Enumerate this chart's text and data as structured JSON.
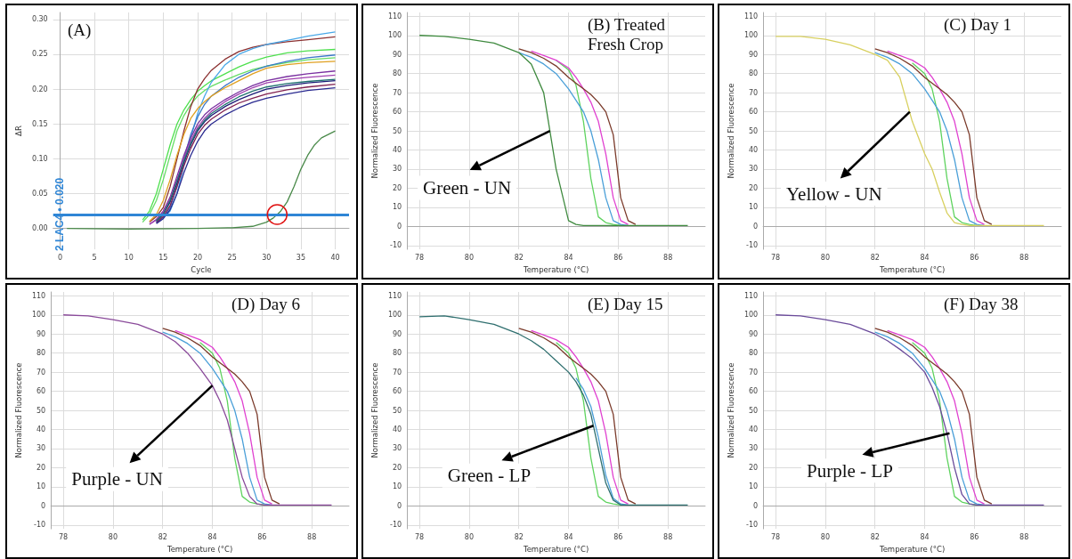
{
  "chart_data": [
    {
      "type": "line",
      "title": "(A)",
      "xlabel": "Cycle",
      "ylabel": "ΔR",
      "x": [
        12,
        13,
        14,
        15,
        16,
        17,
        18,
        19,
        20,
        21,
        22,
        24,
        26,
        28,
        30,
        33,
        36,
        40
      ],
      "xlim": [
        -1,
        42
      ],
      "ylim": [
        -0.03,
        0.31
      ],
      "xticks": [
        0,
        5,
        10,
        15,
        20,
        25,
        30,
        35,
        40
      ],
      "yticks": [
        {
          "value": 0,
          "label": "0.00"
        },
        {
          "value": 0.05,
          "label": "0.05"
        },
        {
          "value": 0.1,
          "label": "0.10"
        },
        {
          "value": 0.15,
          "label": "0.15"
        },
        {
          "value": 0.2,
          "label": "0.20"
        },
        {
          "value": 0.25,
          "label": "0.25"
        },
        {
          "value": 0.3,
          "label": "0.30"
        }
      ],
      "grid": true,
      "ref_lines": [
        {
          "axis": "y",
          "value": 0.02,
          "label": "2 LAC4 • 0.020",
          "color": "#2f86d6"
        }
      ],
      "series": [
        {
          "color": "#4ee04e",
          "values": [
            0.012,
            0.025,
            0.05,
            0.085,
            0.12,
            0.15,
            0.17,
            0.185,
            0.197,
            0.205,
            0.212,
            0.222,
            0.232,
            0.24,
            0.246,
            0.252,
            0.255,
            0.257
          ]
        },
        {
          "color": "#66dd66",
          "values": [
            0.009,
            0.02,
            0.04,
            0.07,
            0.105,
            0.14,
            0.162,
            0.178,
            0.19,
            0.198,
            0.204,
            0.213,
            0.221,
            0.228,
            0.233,
            0.238,
            0.242,
            0.245
          ]
        },
        {
          "color": "#8b3030",
          "values": [
            null,
            0.009,
            0.017,
            0.03,
            0.06,
            0.1,
            0.14,
            0.175,
            0.2,
            0.215,
            0.227,
            0.243,
            0.254,
            0.26,
            0.264,
            0.268,
            0.271,
            0.275
          ]
        },
        {
          "color": "#4aa8e8",
          "values": [
            null,
            null,
            0.009,
            0.015,
            0.025,
            0.05,
            0.09,
            0.13,
            0.165,
            0.19,
            0.21,
            0.235,
            0.25,
            0.258,
            0.264,
            0.27,
            0.276,
            0.282
          ]
        },
        {
          "color": "#3a78c8",
          "values": [
            null,
            null,
            0.008,
            0.016,
            0.03,
            0.06,
            0.1,
            0.135,
            0.16,
            0.178,
            0.19,
            0.205,
            0.217,
            0.226,
            0.233,
            0.24,
            0.245,
            0.249
          ]
        },
        {
          "color": "#e0a020",
          "values": [
            null,
            0.01,
            0.02,
            0.04,
            0.07,
            0.105,
            0.135,
            0.158,
            0.172,
            0.182,
            0.19,
            0.202,
            0.212,
            0.222,
            0.23,
            0.235,
            0.238,
            0.24
          ]
        },
        {
          "color": "#7a30a0",
          "values": [
            null,
            0.006,
            0.013,
            0.025,
            0.045,
            0.075,
            0.105,
            0.13,
            0.15,
            0.163,
            0.172,
            0.185,
            0.196,
            0.205,
            0.212,
            0.218,
            0.222,
            0.226
          ]
        },
        {
          "color": "#1c1c78",
          "values": [
            null,
            null,
            0.01,
            0.02,
            0.038,
            0.065,
            0.095,
            0.12,
            0.14,
            0.153,
            0.162,
            0.175,
            0.185,
            0.193,
            0.2,
            0.205,
            0.209,
            0.212
          ]
        },
        {
          "color": "#802050",
          "values": [
            null,
            null,
            0.008,
            0.017,
            0.033,
            0.06,
            0.09,
            0.115,
            0.135,
            0.148,
            0.157,
            0.17,
            0.18,
            0.187,
            0.193,
            0.199,
            0.203,
            0.207
          ]
        },
        {
          "color": "#2a2a90",
          "values": [
            null,
            null,
            0.007,
            0.014,
            0.027,
            0.05,
            0.08,
            0.105,
            0.125,
            0.14,
            0.15,
            0.163,
            0.173,
            0.181,
            0.187,
            0.193,
            0.198,
            0.202
          ]
        },
        {
          "color": "#a040b0",
          "values": [
            null,
            0.006,
            0.012,
            0.023,
            0.042,
            0.07,
            0.1,
            0.125,
            0.145,
            0.158,
            0.168,
            0.182,
            0.193,
            0.202,
            0.209,
            0.214,
            0.217,
            0.22
          ]
        },
        {
          "color": "#207070",
          "values": [
            null,
            null,
            0.011,
            0.021,
            0.04,
            0.068,
            0.097,
            0.122,
            0.142,
            0.155,
            0.165,
            0.178,
            0.189,
            0.197,
            0.203,
            0.208,
            0.211,
            0.214
          ]
        },
        {
          "color": "#4a8a4a",
          "x": [
            1,
            10,
            20,
            25,
            28,
            30,
            31,
            32,
            33,
            34,
            35,
            36,
            37,
            38,
            40
          ],
          "values": [
            0,
            -0.001,
            0,
            0.001,
            0.003,
            0.009,
            0.015,
            0.024,
            0.038,
            0.06,
            0.085,
            0.105,
            0.12,
            0.13,
            0.14
          ]
        }
      ]
    },
    {
      "type": "line",
      "title": "(B) Treated Fresh Crop",
      "xlabel": "Temperature (°C)",
      "ylabel": "Normalized Fluorescence",
      "x": [
        78,
        79,
        80,
        81,
        82,
        82.5,
        83,
        83.5,
        84,
        84.3,
        84.6,
        84.9,
        85.2,
        85.5,
        85.8,
        86.1,
        86.4,
        86.7,
        87,
        88,
        88.8
      ],
      "xlim": [
        77.5,
        89.5
      ],
      "ylim": [
        -12,
        112
      ],
      "xticks": [
        78,
        80,
        82,
        84,
        86,
        88
      ],
      "yticks": [
        -10,
        0,
        10,
        20,
        30,
        40,
        50,
        60,
        70,
        80,
        90,
        100,
        110
      ],
      "grid": true,
      "annotations": [
        {
          "text": "Green - UN",
          "x": 83.25,
          "y": 50
        }
      ],
      "series": [
        {
          "color": "#5fd35f",
          "values": [
            null,
            null,
            null,
            null,
            null,
            null,
            null,
            87,
            82,
            74,
            55,
            25,
            5,
            2,
            1,
            0.5,
            null,
            null,
            null,
            null,
            null
          ]
        },
        {
          "color": "#4a9fd8",
          "values": [
            null,
            null,
            null,
            null,
            91,
            88.5,
            85,
            80,
            72,
            66,
            60,
            50,
            35,
            15,
            3,
            1,
            0.5,
            null,
            null,
            null,
            null
          ]
        },
        {
          "color": "#e040d0",
          "values": [
            null,
            null,
            null,
            null,
            null,
            91.8,
            89.5,
            87,
            83,
            78,
            72,
            65,
            55,
            38,
            15,
            3,
            1,
            null,
            null,
            null,
            null
          ]
        },
        {
          "color": "#7a3a2a",
          "values": [
            null,
            null,
            null,
            null,
            93,
            91,
            88,
            84,
            78,
            75,
            72,
            69,
            65,
            60,
            48,
            15,
            3,
            1,
            null,
            null,
            null
          ]
        },
        {
          "color": "#3f8a3f",
          "values": [
            100,
            99.5,
            98,
            96,
            91,
            85,
            70,
            30,
            3,
            1,
            0.5,
            0.5,
            0.5,
            0.5,
            0.5,
            0.5,
            0.5,
            0.5,
            0.5,
            0.5,
            0.5
          ]
        }
      ]
    },
    {
      "type": "line",
      "title": "(C) Day 1",
      "xlabel": "Temperature (°C)",
      "ylabel": "Normalized Fluorescence",
      "x": [
        78,
        79,
        80,
        81,
        82,
        82.5,
        83,
        83.5,
        84,
        84.3,
        84.6,
        84.9,
        85.2,
        85.5,
        85.8,
        86.1,
        86.4,
        86.7,
        87,
        88,
        88.8
      ],
      "xlim": [
        77.5,
        89.5
      ],
      "ylim": [
        -12,
        112
      ],
      "xticks": [
        78,
        80,
        82,
        84,
        86,
        88
      ],
      "yticks": [
        -10,
        0,
        10,
        20,
        30,
        40,
        50,
        60,
        70,
        80,
        90,
        100,
        110
      ],
      "grid": true,
      "annotations": [
        {
          "text": "Yellow - UN",
          "x": 83.4,
          "y": 60
        }
      ],
      "series": [
        {
          "color": "#5fd35f",
          "values": [
            null,
            null,
            null,
            null,
            null,
            null,
            null,
            85.5,
            80,
            72,
            55,
            25,
            5,
            2,
            1,
            0.5,
            null,
            null,
            null,
            null,
            null
          ]
        },
        {
          "color": "#4a9fd8",
          "values": [
            null,
            null,
            null,
            null,
            91,
            88.5,
            85,
            80,
            72,
            66,
            60,
            50,
            35,
            15,
            3,
            1,
            0.5,
            null,
            null,
            null,
            null
          ]
        },
        {
          "color": "#e040d0",
          "values": [
            null,
            null,
            null,
            null,
            null,
            91.8,
            89.5,
            87,
            83,
            78,
            72,
            65,
            55,
            38,
            15,
            3,
            1,
            null,
            null,
            null,
            null
          ]
        },
        {
          "color": "#7a3a2a",
          "values": [
            null,
            null,
            null,
            null,
            93,
            91,
            88,
            84,
            78,
            75,
            72,
            69,
            65,
            60,
            48,
            15,
            3,
            1,
            null,
            null,
            null
          ]
        },
        {
          "color": "#d8d060",
          "values": [
            99.5,
            99.5,
            98,
            95,
            90,
            87,
            78,
            55,
            38,
            30,
            18,
            7,
            2,
            1,
            0.5,
            0.5,
            0.5,
            0.5,
            0.5,
            0.5,
            0.5
          ]
        }
      ]
    },
    {
      "type": "line",
      "title": "(D) Day 6",
      "xlabel": "Temperature (°C)",
      "ylabel": "Normalized Fluorescence",
      "x": [
        78,
        79,
        80,
        81,
        82,
        82.5,
        83,
        83.5,
        84,
        84.3,
        84.6,
        84.9,
        85.2,
        85.5,
        85.8,
        86.1,
        86.4,
        86.7,
        87,
        88,
        88.8
      ],
      "xlim": [
        77.5,
        89.5
      ],
      "ylim": [
        -12,
        112
      ],
      "xticks": [
        78,
        80,
        82,
        84,
        86,
        88
      ],
      "yticks": [
        -10,
        0,
        10,
        20,
        30,
        40,
        50,
        60,
        70,
        80,
        90,
        100,
        110
      ],
      "grid": true,
      "annotations": [
        {
          "text": "Purple - UN",
          "x": 84,
          "y": 63
        }
      ],
      "series": [
        {
          "color": "#5fd35f",
          "values": [
            null,
            null,
            null,
            null,
            null,
            null,
            null,
            85.5,
            80,
            72,
            55,
            25,
            5,
            2,
            1,
            0.5,
            null,
            null,
            null,
            null,
            null
          ]
        },
        {
          "color": "#4a9fd8",
          "values": [
            null,
            null,
            null,
            null,
            91,
            88.5,
            85,
            80,
            72,
            66,
            60,
            50,
            35,
            15,
            3,
            1,
            0.5,
            null,
            null,
            null,
            null
          ]
        },
        {
          "color": "#e040d0",
          "values": [
            null,
            null,
            null,
            null,
            null,
            91.8,
            89.5,
            87,
            83,
            78,
            72,
            65,
            55,
            38,
            15,
            3,
            1,
            null,
            null,
            null,
            null
          ]
        },
        {
          "color": "#7a3a2a",
          "values": [
            null,
            null,
            null,
            null,
            93,
            91,
            88,
            84,
            78,
            75,
            72,
            69,
            65,
            60,
            48,
            15,
            3,
            1,
            null,
            null,
            null
          ]
        },
        {
          "color": "#8a4a9a",
          "values": [
            100,
            99.5,
            97.5,
            95,
            90,
            86,
            80,
            72,
            63,
            55,
            45,
            30,
            15,
            5,
            1,
            0.5,
            0.5,
            0.5,
            0.5,
            0.5,
            0.5
          ]
        }
      ]
    },
    {
      "type": "line",
      "title": "(E) Day 15",
      "xlabel": "Temperature (°C)",
      "ylabel": "Normalized Fluorescence",
      "x": [
        78,
        79,
        80,
        81,
        82,
        82.5,
        83,
        83.5,
        84,
        84.3,
        84.6,
        84.9,
        85.2,
        85.5,
        85.8,
        86.1,
        86.4,
        86.7,
        87,
        88,
        88.8
      ],
      "xlim": [
        77.5,
        89.5
      ],
      "ylim": [
        -12,
        112
      ],
      "xticks": [
        78,
        80,
        82,
        84,
        86,
        88
      ],
      "yticks": [
        -10,
        0,
        10,
        20,
        30,
        40,
        50,
        60,
        70,
        80,
        90,
        100,
        110
      ],
      "grid": true,
      "annotations": [
        {
          "text": "Green - LP",
          "x": 85,
          "y": 42
        }
      ],
      "series": [
        {
          "color": "#5fd35f",
          "values": [
            null,
            null,
            null,
            null,
            null,
            null,
            null,
            85.5,
            80,
            72,
            55,
            25,
            5,
            2,
            1,
            0.5,
            null,
            null,
            null,
            null,
            null
          ]
        },
        {
          "color": "#4a9fd8",
          "values": [
            null,
            null,
            null,
            null,
            null,
            null,
            null,
            null,
            null,
            67,
            61,
            52,
            36,
            16,
            4,
            1,
            0.5,
            null,
            null,
            null,
            null
          ]
        },
        {
          "color": "#e040d0",
          "values": [
            null,
            null,
            null,
            null,
            null,
            91.8,
            89.5,
            87,
            83,
            78,
            72,
            65,
            55,
            38,
            15,
            3,
            1,
            null,
            null,
            null,
            null
          ]
        },
        {
          "color": "#7a3a2a",
          "values": [
            null,
            null,
            null,
            null,
            93,
            91,
            88,
            84,
            78,
            75,
            72,
            69,
            65,
            60,
            48,
            15,
            3,
            1,
            null,
            null,
            null
          ]
        },
        {
          "color": "#2f6f6f",
          "values": [
            99,
            99.5,
            97.5,
            95,
            90,
            86.5,
            82,
            76,
            70,
            65,
            58,
            48,
            30,
            12,
            3,
            0.5,
            0.5,
            0.5,
            0.5,
            0.5,
            0.5
          ]
        }
      ]
    },
    {
      "type": "line",
      "title": "(F) Day 38",
      "xlabel": "Temperature (°C)",
      "ylabel": "Normalized Fluorescence",
      "x": [
        78,
        79,
        80,
        81,
        82,
        82.5,
        83,
        83.5,
        84,
        84.3,
        84.6,
        84.9,
        85.2,
        85.5,
        85.8,
        86.1,
        86.4,
        86.7,
        87,
        88,
        88.8
      ],
      "xlim": [
        77.5,
        89.5
      ],
      "ylim": [
        -12,
        112
      ],
      "xticks": [
        78,
        80,
        82,
        84,
        86,
        88
      ],
      "yticks": [
        -10,
        0,
        10,
        20,
        30,
        40,
        50,
        60,
        70,
        80,
        90,
        100,
        110
      ],
      "grid": true,
      "annotations": [
        {
          "text": "Purple - LP",
          "x": 85,
          "y": 38
        }
      ],
      "series": [
        {
          "color": "#5fd35f",
          "values": [
            null,
            null,
            null,
            null,
            null,
            null,
            null,
            85.5,
            80,
            72,
            55,
            25,
            5,
            2,
            1,
            0.5,
            null,
            null,
            null,
            null,
            null
          ]
        },
        {
          "color": "#4a9fd8",
          "values": [
            null,
            null,
            null,
            null,
            91,
            88.5,
            85,
            80,
            72,
            66,
            60,
            50,
            35,
            15,
            3,
            1,
            0.5,
            null,
            null,
            null,
            null
          ]
        },
        {
          "color": "#e040d0",
          "values": [
            null,
            null,
            null,
            null,
            null,
            91.8,
            89.5,
            87,
            83,
            78,
            72,
            65,
            55,
            38,
            15,
            3,
            1,
            null,
            null,
            null,
            null
          ]
        },
        {
          "color": "#7a3a2a",
          "values": [
            null,
            null,
            null,
            null,
            93,
            91,
            88,
            84,
            78,
            75,
            72,
            69,
            65,
            60,
            48,
            15,
            3,
            1,
            null,
            null,
            null
          ]
        },
        {
          "color": "#6a4a9a",
          "values": [
            100,
            99.5,
            97.5,
            95,
            90,
            86.5,
            82,
            77,
            70,
            62,
            52,
            38,
            20,
            6,
            1,
            0.5,
            0.5,
            0.5,
            0.5,
            0.5,
            0.5
          ]
        }
      ]
    }
  ]
}
